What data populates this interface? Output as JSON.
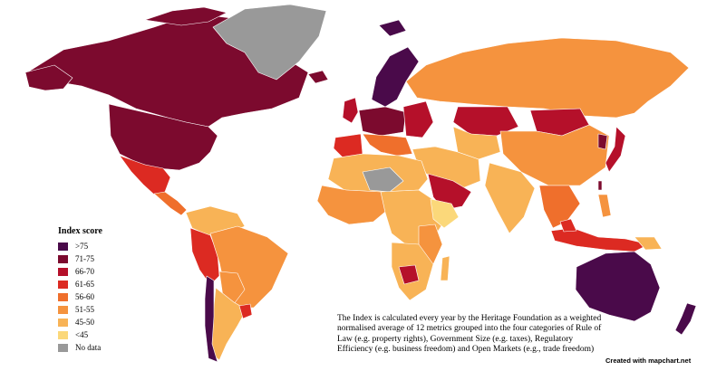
{
  "legend": {
    "title": "Index score",
    "items": [
      {
        "label": ">75",
        "color": "#4a0a4a"
      },
      {
        "label": "71-75",
        "color": "#7c0a2e"
      },
      {
        "label": "66-70",
        "color": "#b5102a"
      },
      {
        "label": "61-65",
        "color": "#dc2a22"
      },
      {
        "label": "56-60",
        "color": "#ef6f2c"
      },
      {
        "label": "51-55",
        "color": "#f5933e"
      },
      {
        "label": "45-50",
        "color": "#f8b356"
      },
      {
        "label": "<45",
        "color": "#fbd87a"
      },
      {
        "label": "No data",
        "color": "#999999"
      }
    ]
  },
  "caption": "The Index is calculated every year by the Heritage Foundation as a weighted normalised average of 12 metrics grouped into the four categories of Rule of Law (e.g. property rights), Government Size (e.g. taxes), Regulatory Efficiency (e.g. business freedom) and Open Markets (e.g., trade freedom)",
  "credit": "Created with mapchart.net"
}
